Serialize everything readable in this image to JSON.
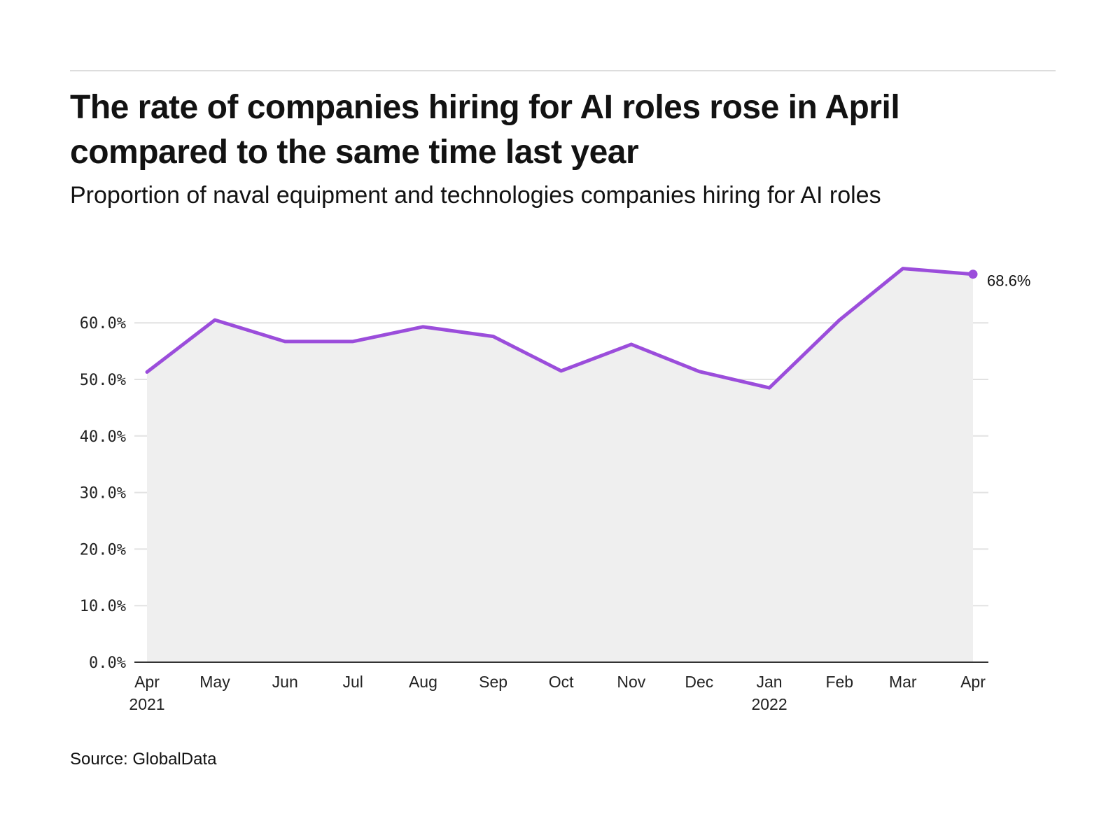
{
  "header": {
    "title": "The rate of companies hiring for AI roles rose in April compared to the same time last year",
    "subtitle": "Proportion of naval equipment and technologies companies hiring for AI roles"
  },
  "footer": {
    "source": "Source: GlobalData"
  },
  "colors": {
    "line": "#9b4ddb",
    "area": "#efefef",
    "grid": "#e2e2e2",
    "axis": "#333333"
  },
  "chart_data": {
    "type": "area",
    "title": "The rate of companies hiring for AI roles rose in April compared to the same time last year",
    "subtitle": "Proportion of naval equipment and technologies companies hiring for AI roles",
    "xlabel": "",
    "ylabel": "",
    "x": [
      "2021-04",
      "2021-05",
      "2021-06",
      "2021-07",
      "2021-08",
      "2021-09",
      "2021-10",
      "2021-11",
      "2021-12",
      "2022-01",
      "2022-02",
      "2022-03",
      "2022-04"
    ],
    "x_tick_labels": [
      {
        "label": "Apr",
        "sub": "2021"
      },
      {
        "label": "May",
        "sub": ""
      },
      {
        "label": "Jun",
        "sub": ""
      },
      {
        "label": "Jul",
        "sub": ""
      },
      {
        "label": "Aug",
        "sub": ""
      },
      {
        "label": "Sep",
        "sub": ""
      },
      {
        "label": "Oct",
        "sub": ""
      },
      {
        "label": "Nov",
        "sub": ""
      },
      {
        "label": "Dec",
        "sub": ""
      },
      {
        "label": "Jan",
        "sub": "2022"
      },
      {
        "label": "Feb",
        "sub": ""
      },
      {
        "label": "Mar",
        "sub": ""
      },
      {
        "label": "Apr",
        "sub": ""
      }
    ],
    "series": [
      {
        "name": "Proportion of companies hiring for AI roles",
        "values": [
          51.3,
          60.5,
          56.7,
          56.7,
          59.3,
          57.6,
          51.5,
          56.2,
          51.4,
          48.5,
          60.5,
          69.6,
          68.6
        ]
      }
    ],
    "ylim": [
      0,
      70
    ],
    "y_ticks": [
      0,
      10,
      20,
      30,
      40,
      50,
      60
    ],
    "y_tick_labels": [
      "0.0%",
      "10.0%",
      "20.0%",
      "30.0%",
      "40.0%",
      "50.0%",
      "60.0%"
    ],
    "end_label": "68.6%",
    "grid": true,
    "legend": "none"
  }
}
